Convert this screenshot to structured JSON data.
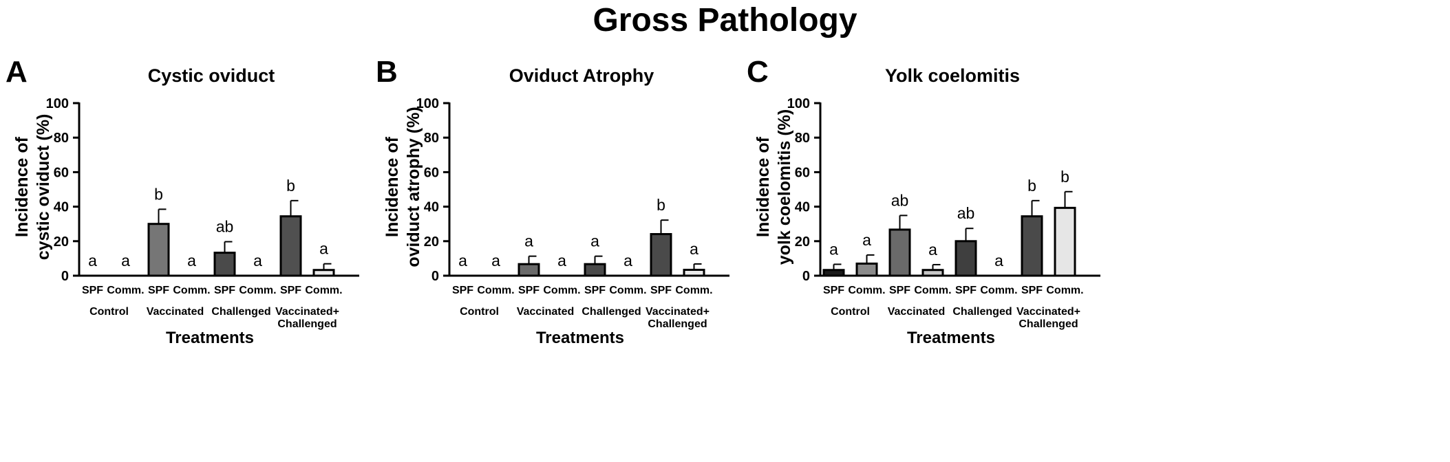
{
  "title": "Gross Pathology",
  "chart_data": [
    {
      "type": "bar",
      "panel_letter": "A",
      "title": "Cystic oviduct",
      "ylabel": "Incidence of cystic oviduct (%)",
      "xlabel": "Treatments",
      "ylim": [
        0,
        100
      ],
      "yticks": [
        "0",
        "20",
        "40",
        "60",
        "80",
        "100"
      ],
      "categories": [
        "SPF",
        "Comm.",
        "SPF",
        "Comm.",
        "SPF",
        "Comm.",
        "SPF",
        "Comm."
      ],
      "groups": [
        [
          "Control"
        ],
        [
          "Vaccinated"
        ],
        [
          "Challenged"
        ],
        [
          "Vaccinated+",
          "Challenged"
        ]
      ],
      "values": [
        0,
        0,
        30,
        0,
        13.3,
        0,
        34.4,
        3.3
      ],
      "errors": [
        0,
        0,
        8.5,
        0,
        6.4,
        0,
        9.1,
        3.6
      ],
      "significance": [
        "a",
        "a",
        "b",
        "a",
        "ab",
        "a",
        "b",
        "a"
      ],
      "bar_colors": [
        "#1a1a1a",
        "#8a8a8a",
        "#767676",
        "#c8c8c8",
        "#4a4a4a",
        "#e0e0e0",
        "#505050",
        "#ebebeb"
      ],
      "grid": false,
      "legend": "none"
    },
    {
      "type": "bar",
      "panel_letter": "B",
      "title": "Oviduct Atrophy",
      "ylabel": "Incidence of oviduct atrophy (%)",
      "xlabel": "Treatments",
      "ylim": [
        0,
        100
      ],
      "yticks": [
        "0",
        "20",
        "40",
        "60",
        "80",
        "100"
      ],
      "categories": [
        "SPF",
        "Comm.",
        "SPF",
        "Comm.",
        "SPF",
        "Comm.",
        "SPF",
        "Comm."
      ],
      "groups": [
        [
          "Control"
        ],
        [
          "Vaccinated"
        ],
        [
          "Challenged"
        ],
        [
          "Vaccinated+",
          "Challenged"
        ]
      ],
      "values": [
        0,
        0,
        6.7,
        0,
        6.7,
        0,
        24.1,
        3.4
      ],
      "errors": [
        0,
        0,
        4.6,
        0,
        4.6,
        0,
        8.1,
        3.4
      ],
      "significance": [
        "a",
        "a",
        "a",
        "a",
        "a",
        "a",
        "b",
        "a"
      ],
      "bar_colors": [
        "#1a1a1a",
        "#8a8a8a",
        "#6a6a6a",
        "#c8c8c8",
        "#4a4a4a",
        "#e0e0e0",
        "#4a4a4a",
        "#ebebeb"
      ],
      "grid": false,
      "legend": "none"
    },
    {
      "type": "bar",
      "panel_letter": "C",
      "title": "Yolk coelomitis",
      "ylabel": "Incidence of yolk coelomitis (%)",
      "xlabel": "Treatments",
      "ylim": [
        0,
        100
      ],
      "yticks": [
        "0",
        "20",
        "40",
        "60",
        "80",
        "100"
      ],
      "categories": [
        "SPF",
        "Comm.",
        "SPF",
        "Comm.",
        "SPF",
        "Comm.",
        "SPF",
        "Comm."
      ],
      "groups": [
        [
          "Control"
        ],
        [
          "Vaccinated"
        ],
        [
          "Challenged"
        ],
        [
          "Vaccinated+",
          "Challenged"
        ]
      ],
      "values": [
        3.3,
        7,
        26.7,
        3.3,
        20,
        0,
        34.4,
        39.3
      ],
      "errors": [
        3.3,
        5,
        8.2,
        3.1,
        7.4,
        0,
        9.1,
        9.4
      ],
      "significance": [
        "a",
        "a",
        "ab",
        "a",
        "ab",
        "a",
        "b",
        "b"
      ],
      "bar_colors": [
        "#1a1a1a",
        "#8a8a8a",
        "#6a6a6a",
        "#c8c8c8",
        "#3f3f3f",
        "#e0e0e0",
        "#4a4a4a",
        "#e6e6e6"
      ],
      "grid": false,
      "legend": "none"
    }
  ]
}
